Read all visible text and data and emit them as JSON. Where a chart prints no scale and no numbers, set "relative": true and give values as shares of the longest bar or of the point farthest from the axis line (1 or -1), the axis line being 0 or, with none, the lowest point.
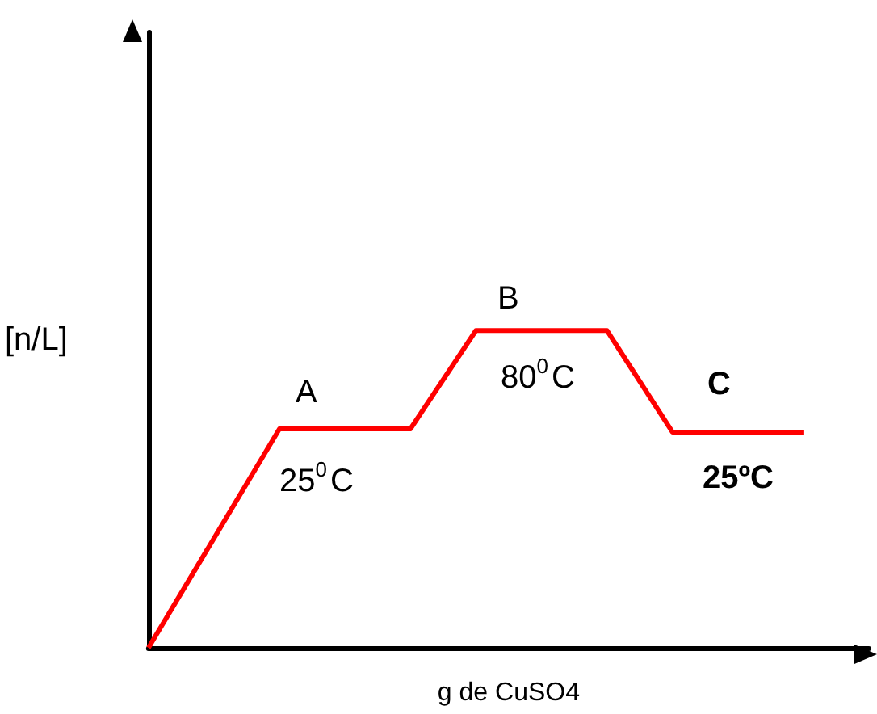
{
  "chart_data": {
    "type": "line",
    "relative": true,
    "xlabel": "g de CuSO4",
    "ylabel": "[n/L]",
    "categories": [
      null,
      null,
      null,
      null,
      null,
      null,
      null,
      null,
      null,
      null,
      null
    ],
    "series": [
      {
        "color": "#ff0000",
        "values": [
          0,
          0.345,
          0.69,
          0.69,
          0.69,
          1,
          1,
          1,
          0.68,
          0.68,
          0.68
        ]
      }
    ],
    "annotations": [
      "A",
      "25$^{0}$C",
      "B",
      "80$^{0}$C",
      "C",
      "25ºC"
    ],
    "marker": "none",
    "line_style": "solid",
    "grid": false
  }
}
